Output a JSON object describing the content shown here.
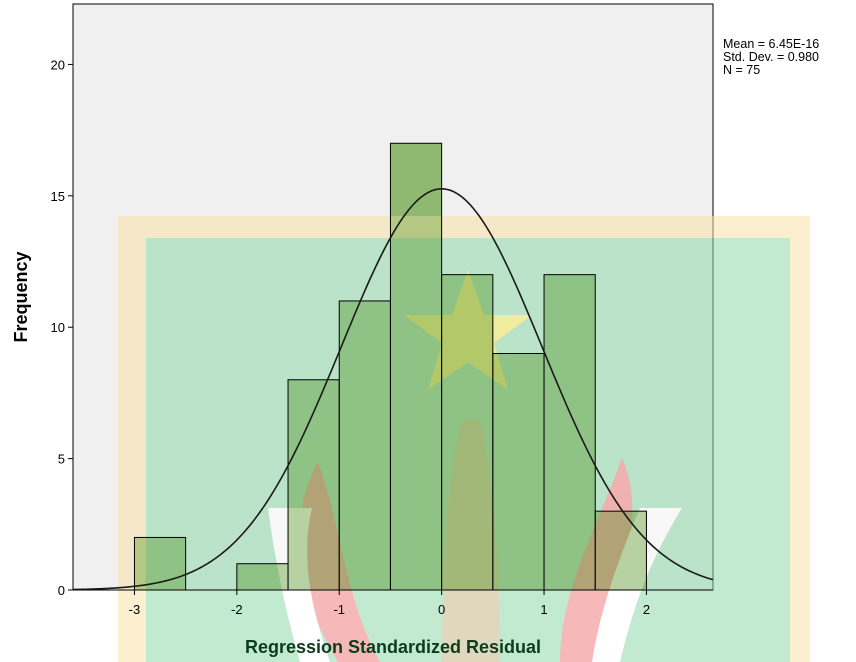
{
  "chart_data": {
    "type": "bar",
    "subtype": "histogram",
    "xlabel": "Regression Standardized Residual",
    "ylabel": "Frequency",
    "bin_width": 0.5,
    "bins": [
      {
        "start": -3.0,
        "end": -2.5,
        "count": 2
      },
      {
        "start": -2.5,
        "end": -2.0,
        "count": 0
      },
      {
        "start": -2.0,
        "end": -1.5,
        "count": 1
      },
      {
        "start": -1.5,
        "end": -1.0,
        "count": 8
      },
      {
        "start": -1.0,
        "end": -0.5,
        "count": 11
      },
      {
        "start": -0.5,
        "end": 0.0,
        "count": 17
      },
      {
        "start": 0.0,
        "end": 0.5,
        "count": 12
      },
      {
        "start": 0.5,
        "end": 1.0,
        "count": 9
      },
      {
        "start": 1.0,
        "end": 1.5,
        "count": 12
      },
      {
        "start": 1.5,
        "end": 2.0,
        "count": 3
      }
    ],
    "x_ticks": [
      -3,
      -2,
      -1,
      0,
      1,
      2
    ],
    "y_ticks": [
      0,
      5,
      10,
      15,
      20
    ],
    "xlim": [
      -3.6,
      2.65
    ],
    "ylim": [
      0,
      22.3
    ],
    "normal_curve": {
      "mean": 0,
      "sd": 0.98,
      "n": 75,
      "bin_width": 0.5
    },
    "stats": {
      "mean": "Mean = 6.45E-16",
      "sd": "Std. Dev. = 0.980",
      "n": "N = 75"
    },
    "grid": false,
    "colors": {
      "plot_background": "#f0f0f0",
      "bar_fill": "#8fb870",
      "watermark_frame": "#f8e2a8",
      "watermark_field": "#b2e2c4",
      "watermark_star": "#f3e95e",
      "watermark_red": "#f5a0a0"
    }
  }
}
